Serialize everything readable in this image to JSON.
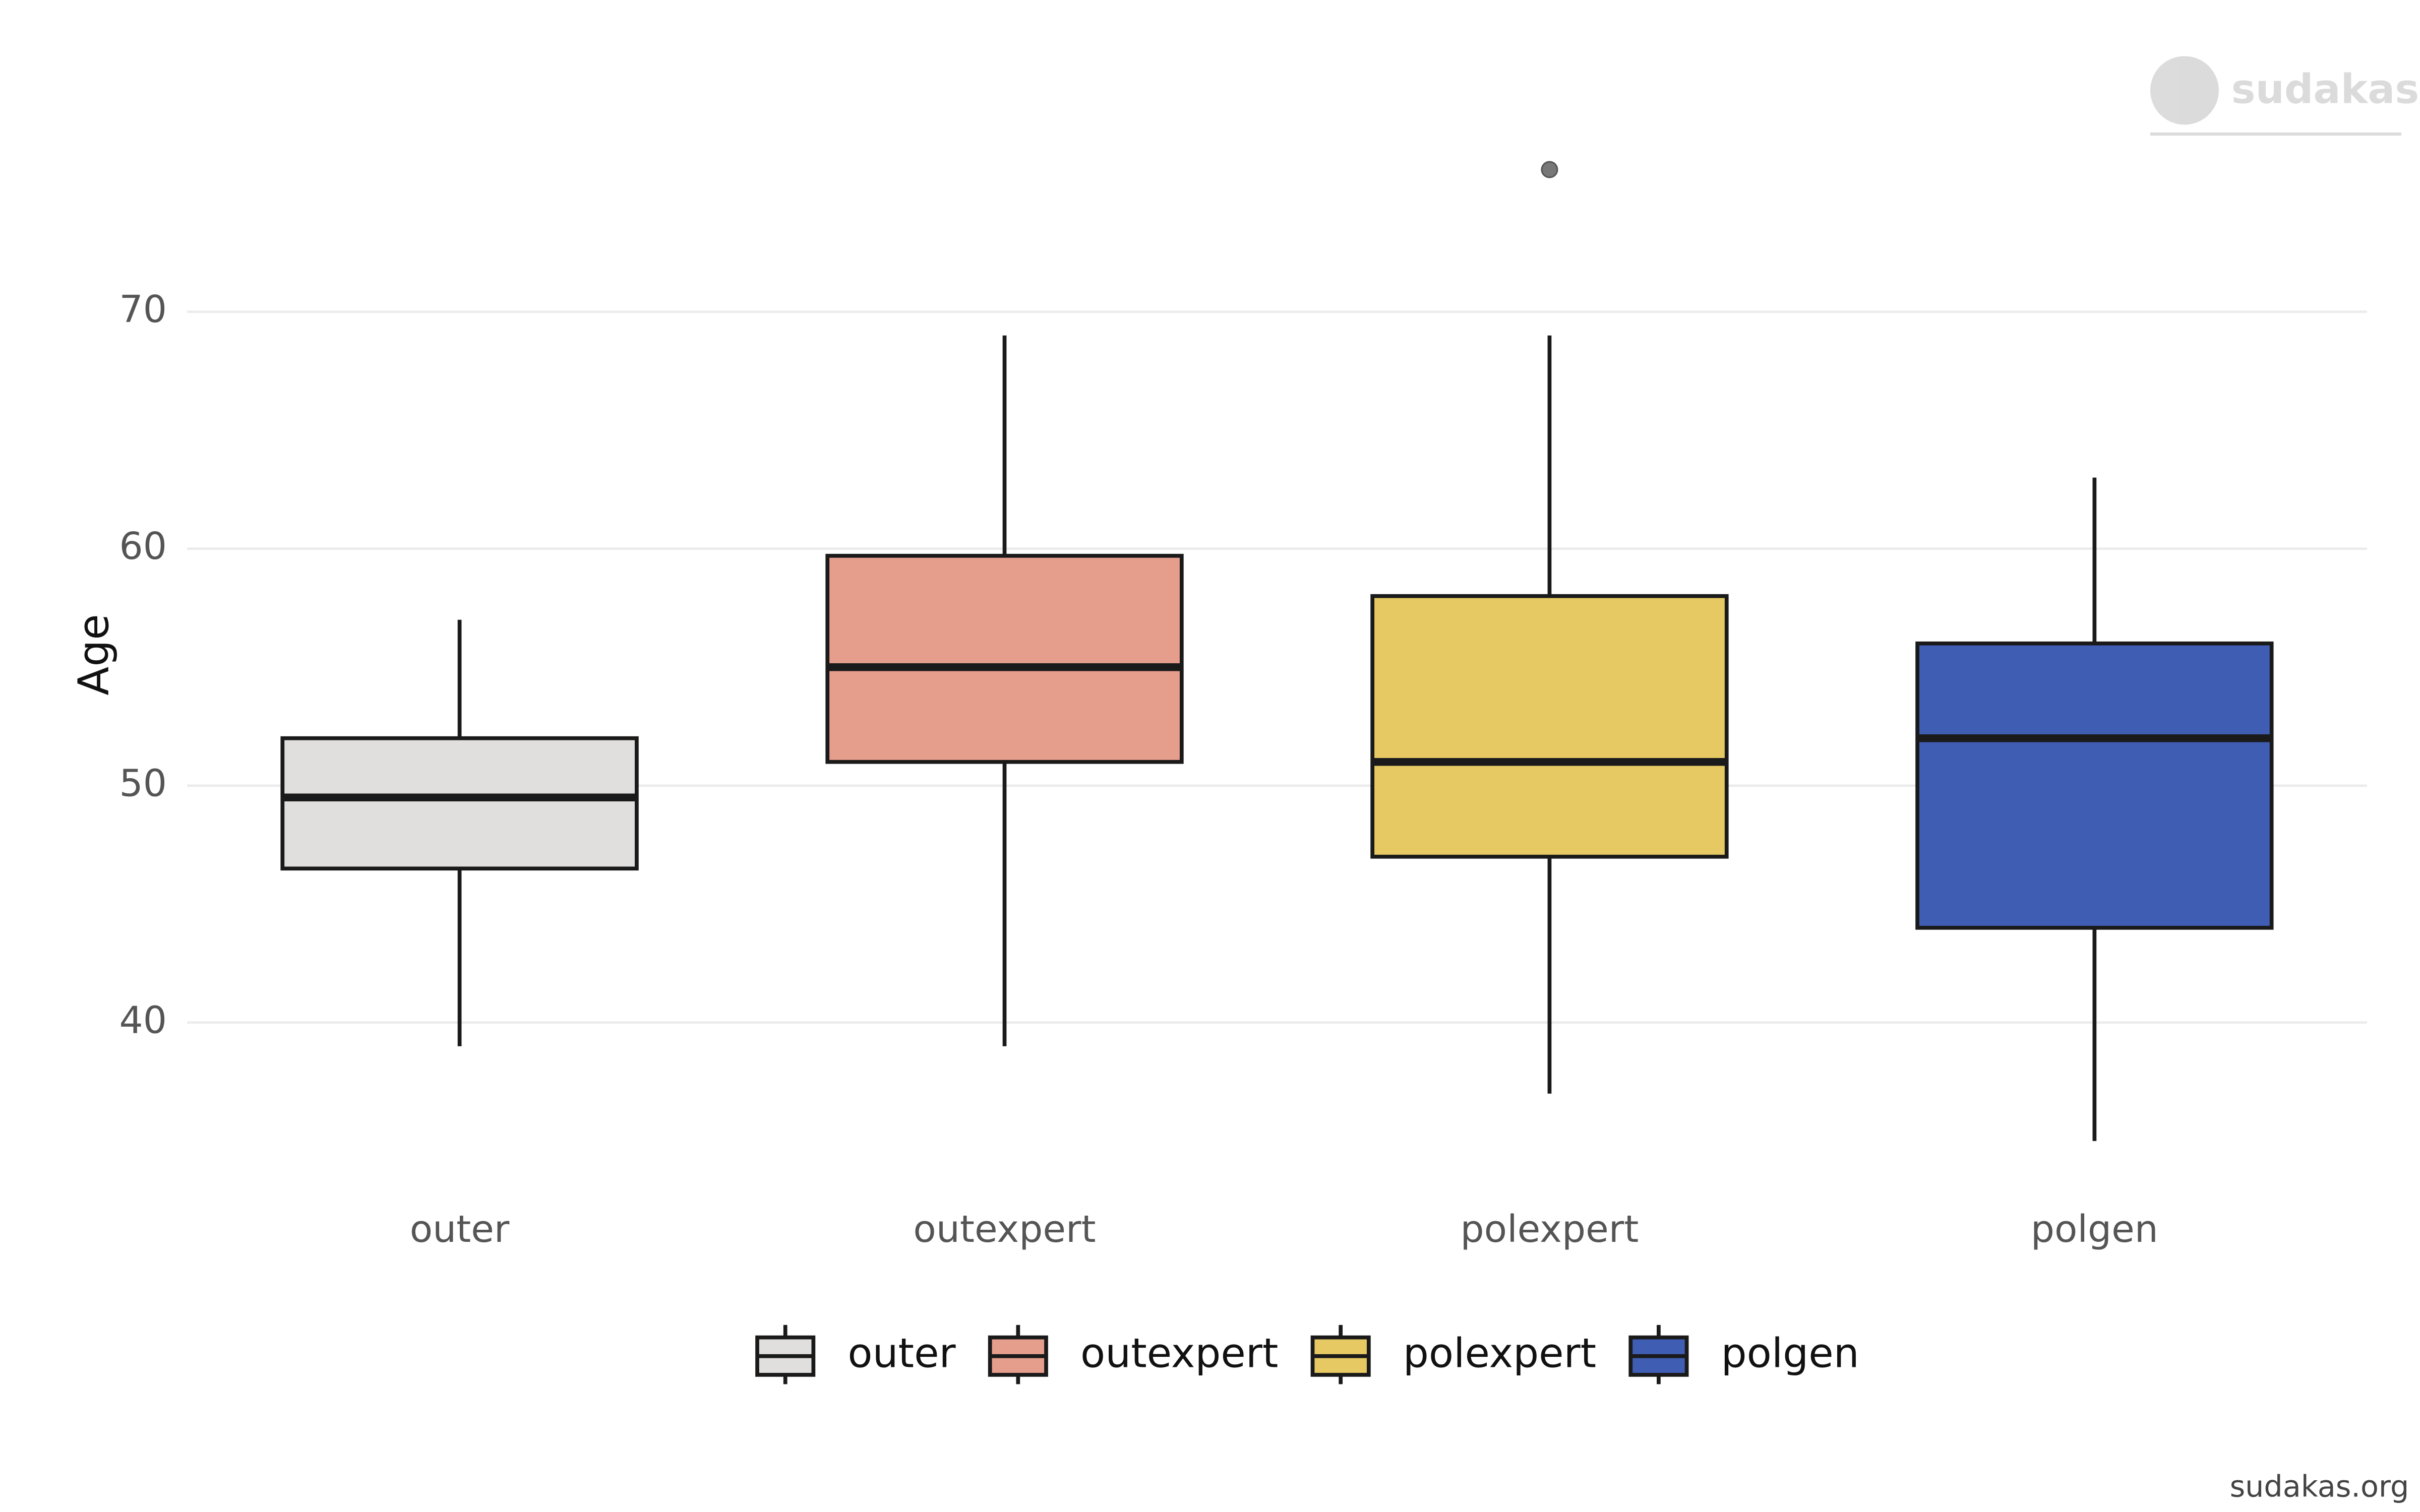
{
  "chart_data": {
    "type": "box",
    "y_label": "Age",
    "categories": [
      "outer",
      "outexpert",
      "polexpert",
      "polgen"
    ],
    "series": [
      {
        "name": "outer",
        "color": "#e0dfdd",
        "whisker_low": 39,
        "q1": 46.5,
        "median": 49.5,
        "q3": 52,
        "whisker_high": 57,
        "outliers": []
      },
      {
        "name": "outexpert",
        "color": "#e59d8c",
        "whisker_low": 39,
        "q1": 51,
        "median": 55,
        "q3": 59.7,
        "whisker_high": 69,
        "outliers": []
      },
      {
        "name": "polexpert",
        "color": "#e6c963",
        "whisker_low": 37,
        "q1": 47,
        "median": 51,
        "q3": 58,
        "whisker_high": 69,
        "outliers": [
          76
        ]
      },
      {
        "name": "polgen",
        "color": "#3f5db2",
        "whisker_low": 35,
        "q1": 44,
        "median": 52,
        "q3": 56,
        "whisker_high": 63,
        "outliers": []
      }
    ],
    "ylim": [
      34,
      77
    ],
    "yticks": [
      40,
      50,
      60,
      70
    ],
    "grid": true,
    "legend": "bottom"
  },
  "watermark": "sudakas",
  "footer": "sudakas.org"
}
